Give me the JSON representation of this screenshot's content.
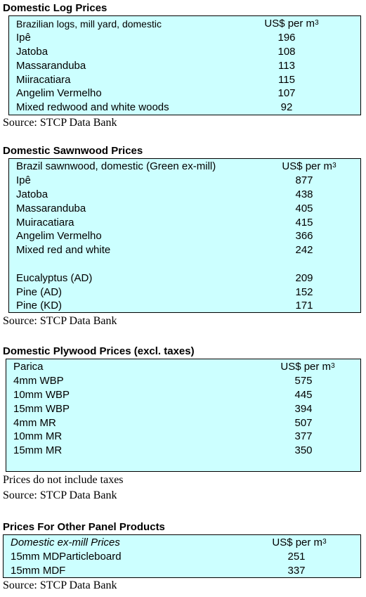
{
  "log": {
    "heading": "Domestic Log Prices",
    "header_name": "Brazilian logs, mill yard, domestic",
    "header_unit": "US$ per m",
    "header_unit_sup": "3",
    "rows": [
      {
        "name": "Ipê",
        "value": "196"
      },
      {
        "name": "Jatoba",
        "value": "108"
      },
      {
        "name": "Massaranduba",
        "value": "113"
      },
      {
        "name": "Miiracatiara",
        "value": "115"
      },
      {
        "name": "Angelim Vermelho",
        "value": "107"
      },
      {
        "name": "Mixed redwood and white woods",
        "value": "92"
      }
    ],
    "source": "Source: STCP Data Bank"
  },
  "sawn": {
    "heading": "Domestic Sawnwood Prices",
    "header_name": "Brazil sawnwood, domestic (Green ex-mill)",
    "header_unit": "US$ per m",
    "header_unit_sup": "3",
    "rows": [
      {
        "name": "Ipê",
        "value": "877"
      },
      {
        "name": "Jatoba",
        "value": "438"
      },
      {
        "name": "Massaranduba",
        "value": "405"
      },
      {
        "name": "Muiracatiara",
        "value": "415"
      },
      {
        "name": "Angelim Vermelho",
        "value": "366"
      },
      {
        "name": "Mixed red and white",
        "value": "242"
      },
      {
        "name": "Eucalyptus (AD)",
        "value": "209"
      },
      {
        "name": "Pine (AD)",
        "value": "152"
      },
      {
        "name": "Pine (KD)",
        "value": "171"
      }
    ],
    "source": "Source: STCP Data Bank"
  },
  "ply": {
    "heading": "Domestic Plywood Prices (excl. taxes)",
    "header_name": "Parica",
    "header_unit": "US$ per m",
    "header_unit_sup": "3",
    "rows": [
      {
        "name": "4mm WBP",
        "value": "575"
      },
      {
        "name": "10mm WBP",
        "value": "445"
      },
      {
        "name": "15mm WBP",
        "value": "394"
      },
      {
        "name": "4mm MR",
        "value": "507"
      },
      {
        "name": "10mm MR",
        "value": "377"
      },
      {
        "name": "15mm MR",
        "value": "350"
      }
    ],
    "note": "Prices do not include taxes",
    "source": "Source: STCP Data Bank"
  },
  "panel": {
    "heading": "Prices For Other Panel Products",
    "header_name": "Domestic ex-mill Prices",
    "header_unit": "US$ per m",
    "header_unit_sup": "3",
    "rows": [
      {
        "name": "15mm MDParticleboard",
        "value": "251"
      },
      {
        "name": "15mm MDF",
        "value": "337"
      }
    ],
    "source": "Source: STCP Data Bank"
  }
}
